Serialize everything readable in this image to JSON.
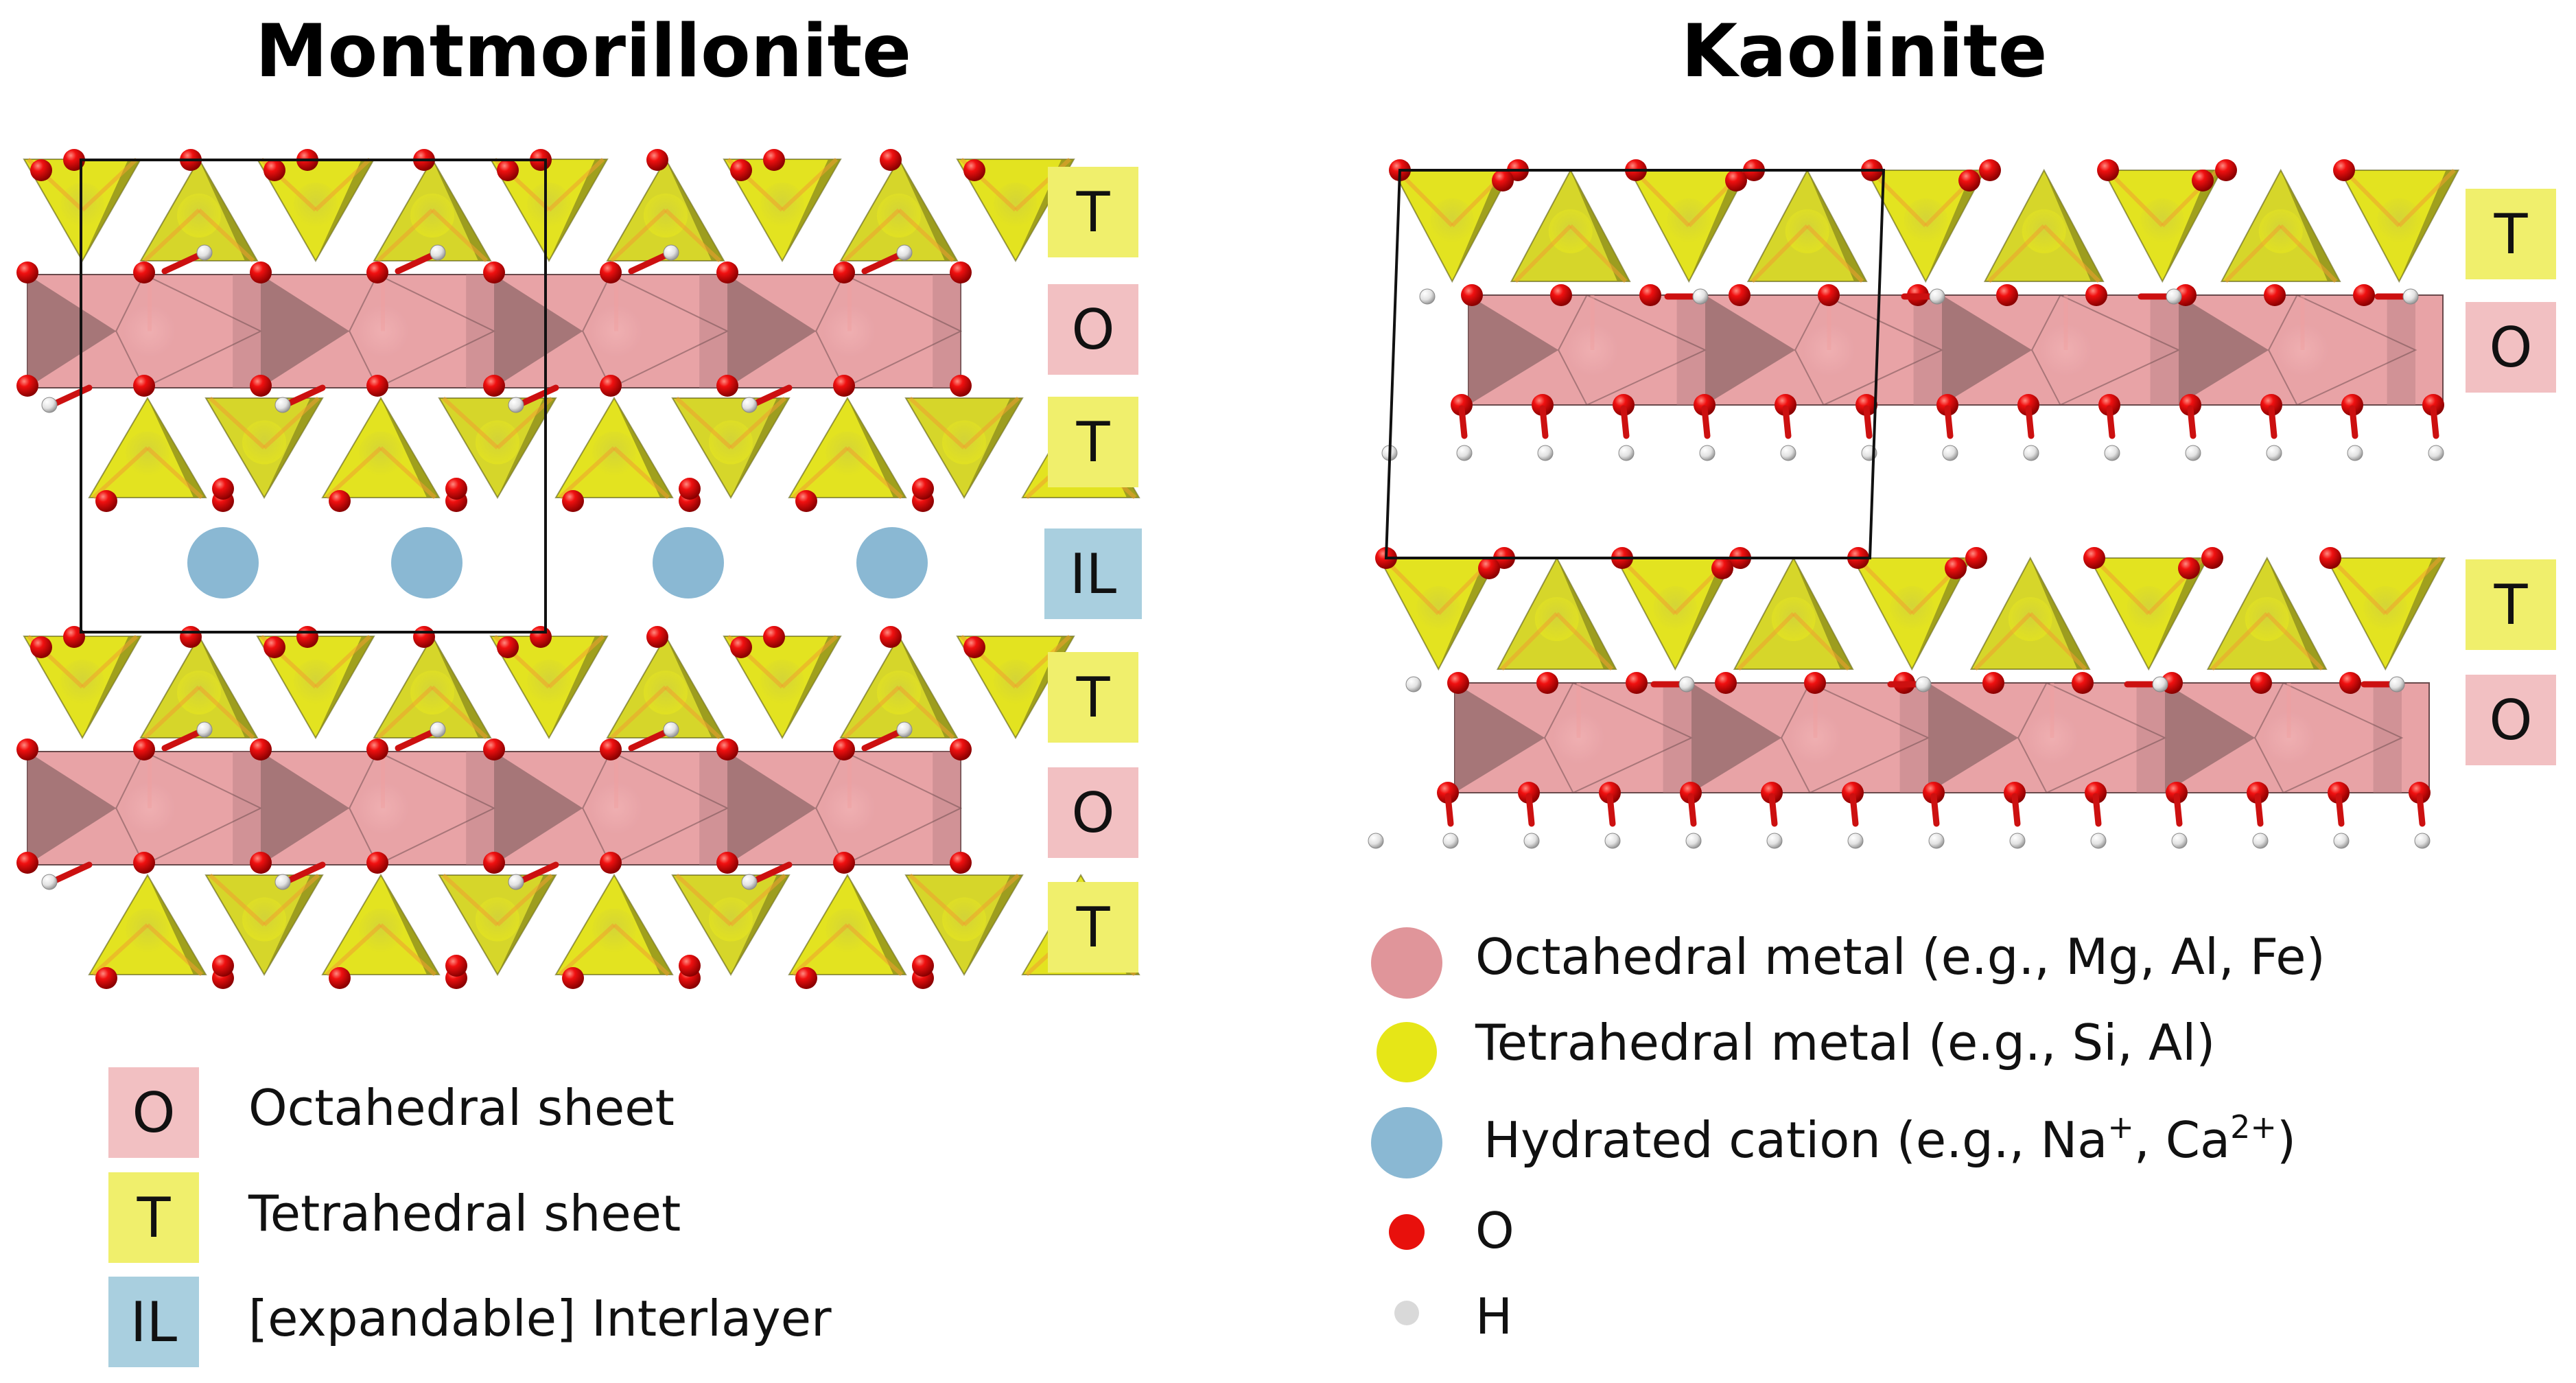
{
  "titles": {
    "left": "Montmorillonite",
    "right": "Kaolinite"
  },
  "montmorillonite_tags": [
    "T",
    "O",
    "T",
    "IL",
    "T",
    "O",
    "T"
  ],
  "kaolinite_tags": [
    "T",
    "O",
    "T",
    "O"
  ],
  "left_legend": [
    {
      "key": "O",
      "label": "Octahedral sheet",
      "color": "#f2c0c2"
    },
    {
      "key": "T",
      "label": "Tetrahedral sheet",
      "color": "#f0ef6c"
    },
    {
      "key": "IL",
      "label": "[expandable] Interlayer",
      "color": "#a9cfdf"
    }
  ],
  "right_legend": {
    "octahedral": {
      "label": "Octahedral metal (e.g., Mg, Al, Fe)",
      "color": "#e0959a"
    },
    "tetrahedral": {
      "label": "Tetrahedral metal (e.g., Si, Al)",
      "color": "#e6e617"
    },
    "cation": {
      "label_pre": "Hydrated cation (e.g., Na",
      "sup1": "+",
      "label_mid": ", Ca",
      "sup2": "2+",
      "label_post": ")",
      "color": "#8ab8d3"
    },
    "oxygen": {
      "label": "O",
      "color": "#e8100c"
    },
    "hydrogen": {
      "label": "H",
      "color": "#d9d9d9"
    }
  },
  "colors": {
    "tetra_fill": "#e3e320",
    "tetra_dark": "#8a8a1c",
    "octa_fill": "#e8a3a6",
    "octa_dark": "#9a6e70",
    "oxygen": "#e8100c",
    "hydrogen": "#e6e6e6",
    "cation": "#8ab8d3"
  }
}
